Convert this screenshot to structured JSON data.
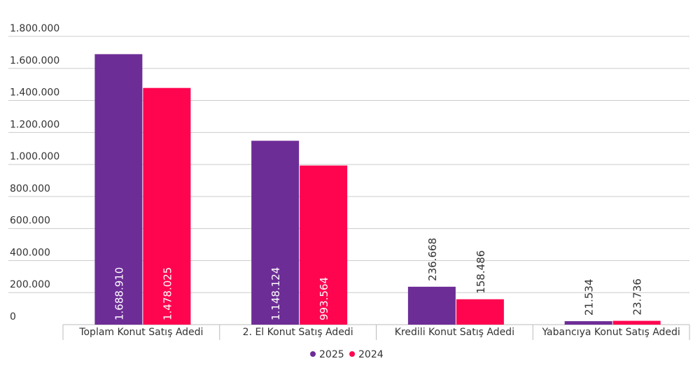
{
  "chart_data": {
    "type": "bar",
    "categories": [
      "Toplam Konut Satış Adedi",
      "2. El Konut Satış Adedi",
      "Kredili Konut Satış Adedi",
      "Yabancıya Konut Satış Adedi"
    ],
    "series": [
      {
        "name": "2025",
        "color": "#6d2d96",
        "values": [
          1688910,
          1148124,
          236668,
          21534
        ],
        "labels": [
          "1.688.910",
          "1.148.124",
          "236.668",
          "21.534"
        ]
      },
      {
        "name": "2024",
        "color": "#ff0550",
        "values": [
          1478025,
          993564,
          158486,
          23736
        ],
        "labels": [
          "1.478.025",
          "993.564",
          "158.486",
          "23.736"
        ]
      }
    ],
    "ylim": [
      0,
      1800000
    ],
    "yticks": [
      0,
      200000,
      400000,
      600000,
      800000,
      1000000,
      1200000,
      1400000,
      1600000,
      1800000
    ],
    "ytick_labels": [
      "0",
      "200.000",
      "400.000",
      "600.000",
      "800.000",
      "1.000.000",
      "1.200.000",
      "1.400.000",
      "1.600.000",
      "1.800.000"
    ],
    "grid": true,
    "legend": "bottom-center"
  }
}
